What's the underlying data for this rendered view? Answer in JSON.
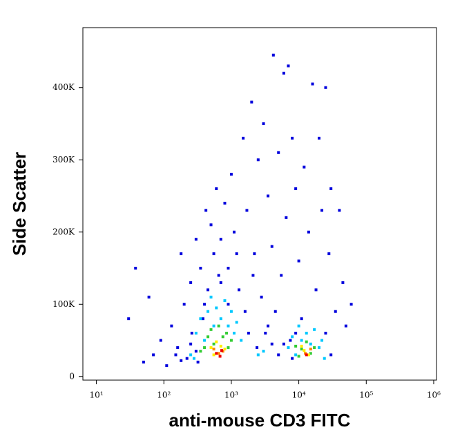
{
  "chart_data": {
    "type": "scatter",
    "x_label": "anti-mouse CD3 FITC",
    "y_label": "Side Scatter",
    "x_log": true,
    "xlim": [
      6.3,
      1100000
    ],
    "ylim": [
      -5000,
      483000
    ],
    "xticks": [
      {
        "value": 10,
        "label": "10¹"
      },
      {
        "value": 100,
        "label": "10²"
      },
      {
        "value": 1000,
        "label": "10³"
      },
      {
        "value": 10000,
        "label": "10⁴"
      },
      {
        "value": 100000,
        "label": "10⁵"
      },
      {
        "value": 1000000,
        "label": "10⁶"
      }
    ],
    "yticks": [
      0,
      {
        "value": 100000,
        "label": "100K"
      },
      {
        "value": 200000,
        "label": "200K"
      },
      {
        "value": 300000,
        "label": "300K"
      },
      {
        "value": 400000,
        "label": "400K"
      }
    ],
    "series": [
      {
        "color": "#0000dd",
        "x": [
          30,
          38,
          50,
          60,
          70,
          90,
          110,
          130,
          160,
          180,
          200,
          220,
          250,
          260,
          300,
          320,
          350,
          380,
          420,
          450,
          500,
          550,
          600,
          650,
          700,
          800,
          900,
          1000,
          1100,
          1300,
          1500,
          1700,
          2000,
          2200,
          2500,
          2800,
          3000,
          3200,
          3500,
          4000,
          4200,
          4500,
          5000,
          5500,
          6000,
          6500,
          7000,
          7500,
          8000,
          9000,
          10000,
          11000,
          12000,
          14000,
          16000,
          18000,
          20000,
          22000,
          25000,
          28000,
          30000,
          35000,
          40000,
          45000,
          50000,
          60000,
          3500,
          2400,
          1800,
          5000,
          6000,
          300,
          250,
          180,
          150,
          1600,
          2100,
          1200,
          900,
          700,
          400,
          8000,
          9000,
          30000,
          25000,
          4000
        ],
        "values": [
          80000,
          150000,
          20000,
          110000,
          30000,
          50000,
          15000,
          70000,
          40000,
          170000,
          100000,
          25000,
          130000,
          60000,
          190000,
          20000,
          150000,
          80000,
          230000,
          120000,
          210000,
          170000,
          260000,
          140000,
          190000,
          240000,
          150000,
          280000,
          200000,
          120000,
          330000,
          230000,
          380000,
          170000,
          300000,
          110000,
          350000,
          60000,
          250000,
          180000,
          445000,
          90000,
          310000,
          140000,
          420000,
          220000,
          430000,
          50000,
          330000,
          260000,
          160000,
          80000,
          290000,
          200000,
          405000,
          120000,
          330000,
          230000,
          400000,
          170000,
          260000,
          90000,
          230000,
          130000,
          70000,
          100000,
          70000,
          40000,
          60000,
          30000,
          45000,
          35000,
          45000,
          22000,
          30000,
          90000,
          140000,
          170000,
          100000,
          130000,
          100000,
          25000,
          60000,
          30000,
          60000,
          45000
        ]
      },
      {
        "color": "#00c8ff",
        "x": [
          300,
          350,
          400,
          450,
          500,
          550,
          600,
          700,
          800,
          900,
          1000,
          1100,
          1200,
          1400,
          250,
          280,
          7000,
          8000,
          9000,
          10000,
          11000,
          13000,
          15000,
          17000,
          20000,
          22000,
          24000,
          3000,
          2500
        ],
        "values": [
          60000,
          80000,
          50000,
          90000,
          110000,
          70000,
          95000,
          80000,
          105000,
          70000,
          90000,
          60000,
          75000,
          50000,
          30000,
          25000,
          40000,
          55000,
          30000,
          70000,
          50000,
          60000,
          45000,
          65000,
          40000,
          50000,
          25000,
          35000,
          30000
        ]
      },
      {
        "color": "#33cc33",
        "x": [
          400,
          450,
          500,
          550,
          650,
          750,
          850,
          900,
          1000,
          350,
          9000,
          11000,
          13000,
          15000,
          17000,
          10000
        ],
        "values": [
          40000,
          55000,
          65000,
          45000,
          70000,
          55000,
          60000,
          40000,
          50000,
          35000,
          42000,
          38000,
          48000,
          32000,
          40000,
          28000
        ]
      },
      {
        "color": "#ffee00",
        "x": [
          500,
          600,
          700,
          800,
          550,
          12000,
          14000,
          11000
        ],
        "values": [
          40000,
          48000,
          42000,
          38000,
          30000,
          36000,
          30000,
          42000
        ]
      },
      {
        "color": "#ff8800",
        "x": [
          550,
          650,
          750,
          12500,
          15000
        ],
        "values": [
          38000,
          32000,
          35000,
          32000,
          38000
        ]
      },
      {
        "color": "#ee0000",
        "x": [
          600,
          680,
          720,
          13000
        ],
        "values": [
          32000,
          28000,
          36000,
          30000
        ]
      }
    ]
  }
}
